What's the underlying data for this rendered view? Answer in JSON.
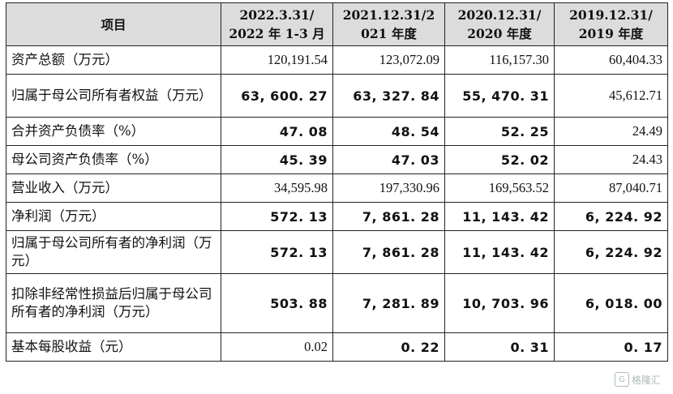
{
  "table": {
    "headers": [
      "项目",
      "2022.3.31/\n2022 年 1-3 月",
      "2021.12.31/2\n021 年度",
      "2020.12.31/\n2020 年度",
      "2019.12.31/\n2019 年度"
    ],
    "rows": [
      {
        "label": "资产总额（万元）",
        "values": [
          "120,191.54",
          "123,072.09",
          "116,157.30",
          "60,404.33"
        ],
        "bold": [
          false,
          false,
          false,
          false
        ],
        "height": "h1"
      },
      {
        "label": "归属于母公司所有者权益（万元）",
        "values": [
          "63, 600. 27",
          "63, 327. 84",
          "55, 470. 31",
          "45,612.71"
        ],
        "bold": [
          true,
          true,
          true,
          false
        ],
        "height": "h2"
      },
      {
        "label": "合并资产负债率（%）",
        "values": [
          "47. 08",
          "48. 54",
          "52. 25",
          "24.49"
        ],
        "bold": [
          true,
          true,
          true,
          false
        ],
        "height": "h1"
      },
      {
        "label": "母公司资产负债率（%）",
        "values": [
          "45. 39",
          "47. 03",
          "52. 02",
          "24.43"
        ],
        "bold": [
          true,
          true,
          true,
          false
        ],
        "height": "h1"
      },
      {
        "label": "营业收入（万元）",
        "values": [
          "34,595.98",
          "197,330.96",
          "169,563.52",
          "87,040.71"
        ],
        "bold": [
          false,
          false,
          false,
          false
        ],
        "height": "h1"
      },
      {
        "label": "净利润（万元）",
        "values": [
          "572. 13",
          "7, 861. 28",
          "11, 143. 42",
          "6, 224. 92"
        ],
        "bold": [
          true,
          true,
          true,
          true
        ],
        "height": "h1"
      },
      {
        "label": "归属于母公司所有者的净利润（万元）",
        "values": [
          "572. 13",
          "7, 861. 28",
          "11, 143. 42",
          "6, 224. 92"
        ],
        "bold": [
          true,
          true,
          true,
          true
        ],
        "height": "h2"
      },
      {
        "label": "扣除非经常性损益后归属于母公司所有者的净利润（万元）",
        "values": [
          "503. 88",
          "7, 281. 89",
          "10, 703. 96",
          "6, 018. 00"
        ],
        "bold": [
          true,
          true,
          true,
          true
        ],
        "height": "h3"
      },
      {
        "label": "基本每股收益（元）",
        "values": [
          "0.02",
          "0. 22",
          "0. 31",
          "0. 17"
        ],
        "bold": [
          false,
          true,
          true,
          true
        ],
        "height": "h1"
      }
    ]
  },
  "watermark": {
    "icon": "gelonghui-logo-icon",
    "text": "格隆汇"
  }
}
